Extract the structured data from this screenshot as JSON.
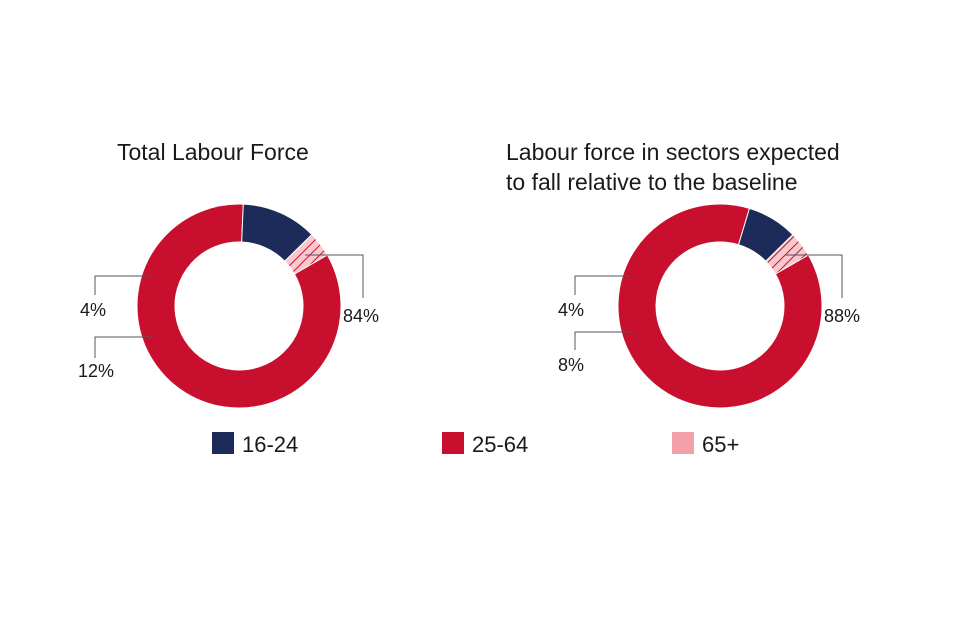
{
  "chart_data": [
    {
      "type": "pie",
      "variant": "donut",
      "title_lines": [
        "Total Labour Force"
      ],
      "categories": [
        "16-24",
        "25-64",
        "65+"
      ],
      "values": [
        12,
        84,
        4
      ],
      "labels": [
        "12%",
        "84%",
        "4%"
      ]
    },
    {
      "type": "pie",
      "variant": "donut",
      "title_lines": [
        "Labour force in sectors expected",
        "to fall relative to the baseline"
      ],
      "categories": [
        "16-24",
        "25-64",
        "65+"
      ],
      "values": [
        8,
        88,
        4
      ],
      "labels": [
        "8%",
        "88%",
        "4%"
      ]
    }
  ],
  "legend": {
    "placement": "bottom",
    "items": [
      {
        "label": "16-24",
        "color": "#1c2b5a",
        "pattern": "solid"
      },
      {
        "label": "25-64",
        "color": "#c8102e",
        "pattern": "solid"
      },
      {
        "label": "65+",
        "color": "#f4a0ab",
        "pattern": "solid"
      }
    ]
  },
  "colors": {
    "16-24": "#1c2b5a",
    "25-64": "#c8102e",
    "65+": "#f4a0ab",
    "65+_hatch": "#c8102e"
  }
}
